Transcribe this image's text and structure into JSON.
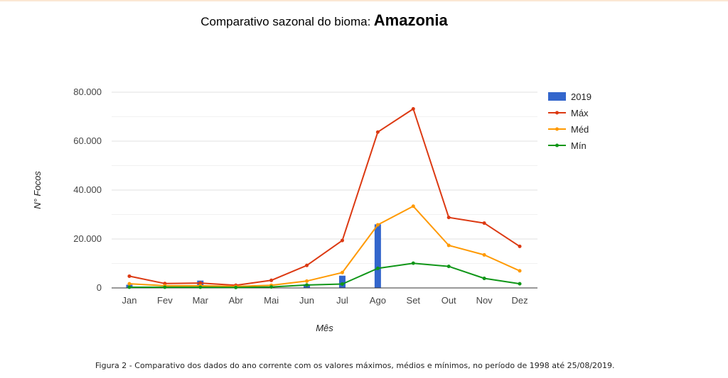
{
  "title_prefix": "Comparativo sazonal do bioma:",
  "title_biome": "Amazonia",
  "caption": "Figura 2 - Comparativo dos dados do ano corrente com os valores máximos, médios e mínimos, no período de 1998 até 25/08/2019.",
  "colors": {
    "bar": "#3366cc",
    "max": "#dc3912",
    "med": "#ff9900",
    "min": "#109618",
    "grid": "#e0e0e0",
    "axis": "#333333"
  },
  "chart_data": {
    "type": "bar+line",
    "xlabel": "Mês",
    "ylabel": "N° Focos",
    "ylim": [
      0,
      80000
    ],
    "yticks": [
      0,
      20000,
      40000,
      60000,
      80000
    ],
    "ytick_labels": [
      "0",
      "20.000",
      "40.000",
      "60.000",
      "80.000"
    ],
    "categories": [
      "Jan",
      "Fev",
      "Mar",
      "Abr",
      "Mai",
      "Jun",
      "Jul",
      "Ago",
      "Set",
      "Out",
      "Nov",
      "Dez"
    ],
    "legend_position": "right",
    "bars": {
      "name": "2019",
      "values": [
        1300,
        100,
        3000,
        500,
        500,
        1500,
        5000,
        26000,
        null,
        null,
        null,
        null
      ]
    },
    "series": [
      {
        "name": "Máx",
        "key": "max",
        "values": [
          4800,
          1800,
          2000,
          1100,
          3100,
          9200,
          19400,
          63700,
          73200,
          28800,
          26500,
          17000
        ]
      },
      {
        "name": "Méd",
        "key": "med",
        "values": [
          1700,
          900,
          900,
          600,
          1100,
          2800,
          6300,
          25800,
          33400,
          17400,
          13500,
          7000
        ]
      },
      {
        "name": "Mín",
        "key": "min",
        "values": [
          300,
          300,
          300,
          200,
          400,
          1200,
          1600,
          8000,
          10100,
          8800,
          3900,
          1700
        ]
      }
    ]
  }
}
